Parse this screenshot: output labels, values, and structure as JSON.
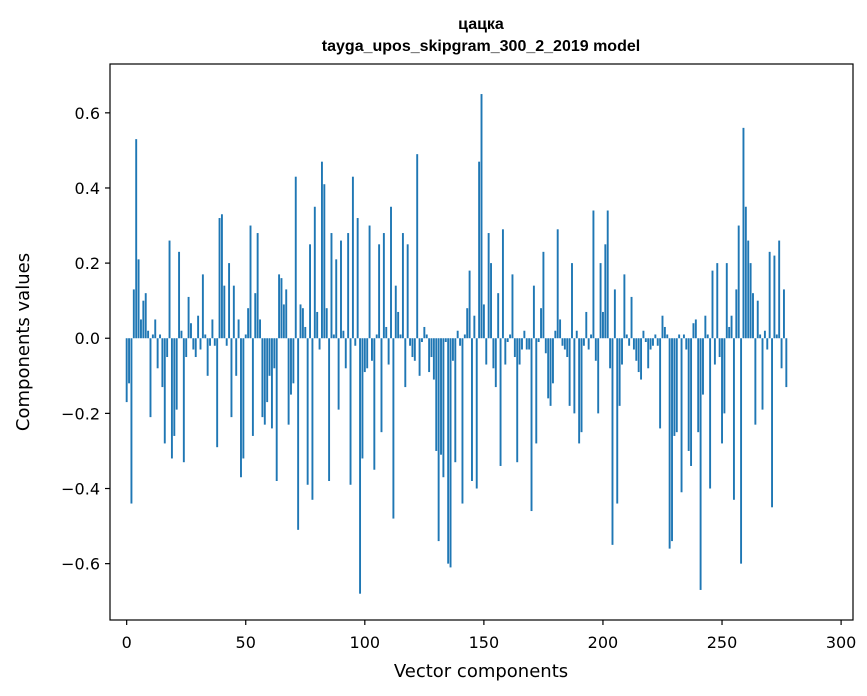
{
  "chart_data": {
    "type": "bar",
    "title": "цацка",
    "subtitle": "tayga_upos_skipgram_300_2_2019 model",
    "xlabel": "Vector components",
    "ylabel": "Components values",
    "xlim": [
      -7,
      305
    ],
    "ylim": [
      -0.75,
      0.73
    ],
    "xticks": [
      0,
      50,
      100,
      150,
      200,
      250,
      300
    ],
    "yticks": [
      -0.6,
      -0.4,
      -0.2,
      0.0,
      0.2,
      0.4,
      0.6
    ],
    "xtick_labels": [
      "0",
      "50",
      "100",
      "150",
      "200",
      "250",
      "300"
    ],
    "ytick_labels": [
      "−0.6",
      "−0.4",
      "−0.2",
      "0.0",
      "0.2",
      "0.4",
      "0.6"
    ],
    "bar_color": "#1f77b4",
    "x_start": 0,
    "values": [
      -0.17,
      -0.12,
      -0.44,
      0.13,
      0.53,
      0.21,
      0.05,
      0.1,
      0.12,
      0.02,
      -0.21,
      0.01,
      0.05,
      -0.08,
      0.01,
      -0.13,
      -0.28,
      -0.05,
      0.26,
      -0.32,
      -0.26,
      -0.19,
      0.23,
      0.02,
      -0.33,
      -0.05,
      0.11,
      0.04,
      -0.03,
      -0.05,
      0.06,
      -0.03,
      0.17,
      0.01,
      -0.1,
      -0.02,
      0.05,
      -0.02,
      -0.29,
      0.32,
      0.33,
      0.14,
      -0.02,
      0.2,
      -0.21,
      0.14,
      -0.1,
      0.05,
      -0.37,
      -0.32,
      0.01,
      0.08,
      0.3,
      -0.26,
      0.12,
      0.28,
      0.05,
      -0.21,
      -0.23,
      -0.17,
      -0.1,
      -0.24,
      -0.08,
      -0.38,
      0.17,
      0.16,
      0.09,
      0.13,
      -0.23,
      -0.15,
      -0.12,
      0.43,
      -0.51,
      0.09,
      0.08,
      0.03,
      -0.39,
      0.25,
      -0.43,
      0.35,
      0.07,
      -0.03,
      0.47,
      0.41,
      0.08,
      -0.38,
      0.28,
      0.01,
      0.21,
      -0.19,
      0.26,
      0.02,
      -0.08,
      0.28,
      -0.39,
      0.43,
      -0.02,
      0.32,
      -0.68,
      -0.32,
      -0.09,
      -0.08,
      0.3,
      -0.06,
      -0.35,
      0.01,
      0.25,
      -0.25,
      0.28,
      0.03,
      -0.07,
      0.35,
      -0.48,
      0.14,
      0.07,
      0.01,
      0.28,
      -0.13,
      0.25,
      -0.02,
      -0.05,
      -0.06,
      0.49,
      -0.1,
      -0.01,
      0.03,
      0.01,
      -0.09,
      -0.05,
      -0.11,
      -0.3,
      -0.54,
      -0.31,
      -0.37,
      -0.01,
      -0.6,
      -0.61,
      -0.06,
      -0.33,
      0.02,
      -0.02,
      -0.44,
      0.01,
      0.08,
      0.18,
      -0.38,
      0.06,
      -0.4,
      0.47,
      0.65,
      0.09,
      -0.07,
      0.28,
      0.2,
      -0.08,
      -0.13,
      0.12,
      -0.34,
      0.29,
      -0.07,
      -0.01,
      0.01,
      0.17,
      -0.05,
      -0.33,
      -0.07,
      -0.03,
      0.02,
      -0.03,
      -0.03,
      -0.46,
      0.14,
      -0.28,
      -0.01,
      0.08,
      0.23,
      -0.04,
      -0.16,
      -0.18,
      -0.12,
      0.02,
      0.29,
      0.05,
      -0.02,
      -0.03,
      -0.05,
      -0.18,
      0.2,
      -0.2,
      0.02,
      -0.28,
      -0.25,
      -0.02,
      0.07,
      -0.03,
      0.01,
      0.34,
      -0.06,
      -0.2,
      0.2,
      0.07,
      0.25,
      0.34,
      -0.08,
      -0.55,
      0.13,
      -0.44,
      -0.18,
      -0.07,
      0.17,
      0.01,
      -0.02,
      0.11,
      -0.03,
      -0.06,
      -0.09,
      -0.11,
      0.02,
      -0.01,
      -0.08,
      -0.03,
      -0.02,
      0.01,
      -0.02,
      -0.24,
      0.06,
      0.03,
      0.01,
      -0.56,
      -0.54,
      -0.26,
      -0.25,
      0.01,
      -0.41,
      0.01,
      -0.03,
      -0.3,
      -0.34,
      0.04,
      0.05,
      -0.25,
      -0.67,
      -0.15,
      0.06,
      0.01,
      -0.4,
      0.18,
      -0.07,
      0.2,
      -0.05,
      -0.28,
      -0.2,
      0.2,
      0.03,
      0.06,
      -0.43,
      0.13,
      0.3,
      -0.6,
      0.56,
      0.35,
      0.26,
      0.2,
      0.12,
      -0.23,
      0.1,
      0.01,
      -0.19,
      0.02,
      -0.03,
      0.23,
      -0.45,
      0.22,
      0.01,
      0.26,
      -0.08,
      0.13,
      -0.13
    ]
  }
}
